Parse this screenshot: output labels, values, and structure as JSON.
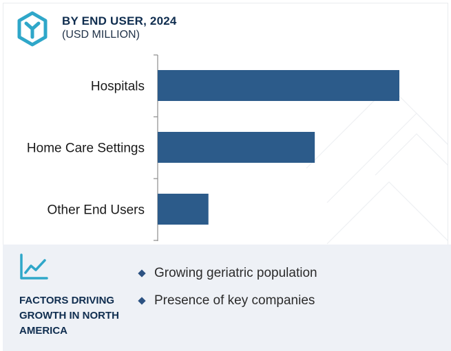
{
  "header": {
    "title": "BY END USER, 2024",
    "subtitle": "(USD MILLION)",
    "logo_icon": "hexagon-y-logo-icon",
    "accent_color": "#2fa7c9",
    "title_color": "#0f2d4f"
  },
  "chart_data": {
    "type": "bar",
    "orientation": "horizontal",
    "categories": [
      "Hospitals",
      "Home Care Settings",
      "Other End Users"
    ],
    "values": [
      100,
      65,
      21
    ],
    "value_unit": "relative, no numeric labels shown",
    "title": "BY END USER, 2024",
    "subtitle": "(USD MILLION)",
    "bar_color": "#2c5b8a",
    "grid": false,
    "legend": "none"
  },
  "factors": {
    "icon": "trend-chart-icon",
    "heading": "FACTORS DRIVING GROWTH IN NORTH AMERICA",
    "items": [
      "Growing geriatric population",
      "Presence of key companies"
    ],
    "panel_color": "#eef1f6"
  }
}
